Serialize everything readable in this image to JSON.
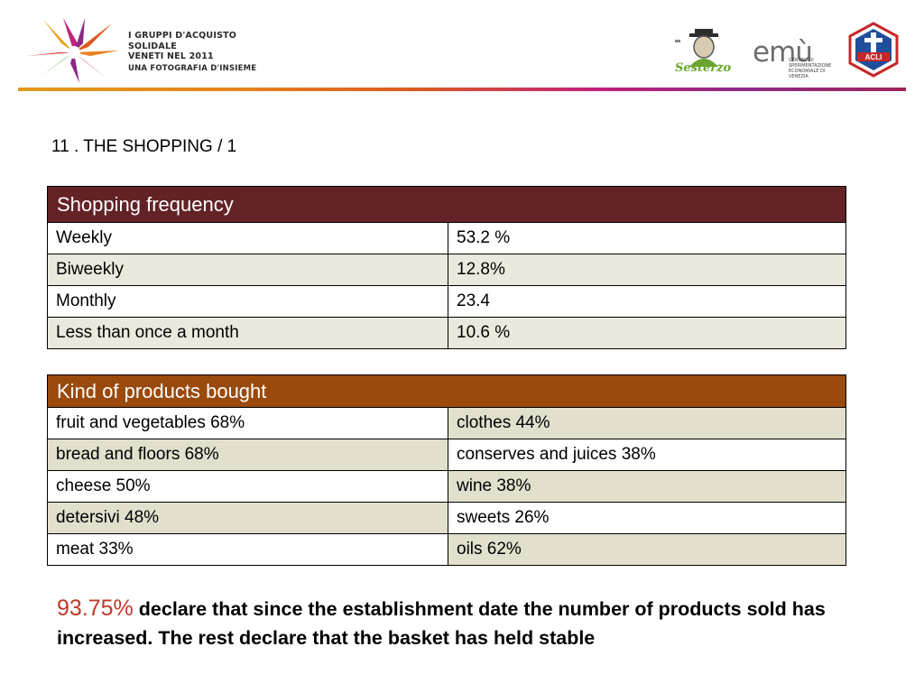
{
  "header": {
    "project_lines": [
      "I GRUPPI D'ACQUISTO",
      "SOLIDALE",
      "VENETI NEL 2011"
    ],
    "project_subtitle": "UNA FOTOGRAFIA D'INSIEME",
    "sesterzo_label": "Sesterzo",
    "emu_wordmark": "emù",
    "emu_subtitle": "CENTRO DI SPERIMENTAZIONE ECONOMIALE DI VENEZIA",
    "acli_label": "ACLI",
    "colors": {
      "bar_start": "#e39b1c",
      "bar_end": "#a1255a"
    }
  },
  "slide_title": "11 . THE SHOPPING / 1",
  "frequency_table": {
    "header": "Shopping frequency",
    "header_color": "#632326",
    "rows": [
      {
        "label": "Weekly",
        "value": "53.2 %"
      },
      {
        "label": "Biweekly",
        "value": "12.8%"
      },
      {
        "label": "Monthly",
        "value": "23.4"
      },
      {
        "label": "Less than once a month",
        "value": "10.6 %"
      }
    ]
  },
  "products_table": {
    "header": "Kind of products bought",
    "header_color": "#994a0c",
    "rows": [
      {
        "left": "fruit and vegetables  68%",
        "right": "clothes  44%"
      },
      {
        "left": "bread and floors  68%",
        "right": "conserves and juices  38%"
      },
      {
        "left": "cheese  50%",
        "right": "wine  38%"
      },
      {
        "left": "detersivi  48%",
        "right": "sweets  26%"
      },
      {
        "left": "meat  33%",
        "right": "oils  62%"
      }
    ]
  },
  "footer": {
    "highlight": "93.75%",
    "highlight_color": "#c0392b",
    "text": " declare that since the establishment date the number of products sold has increased. The rest declare that the basket has held stable"
  }
}
